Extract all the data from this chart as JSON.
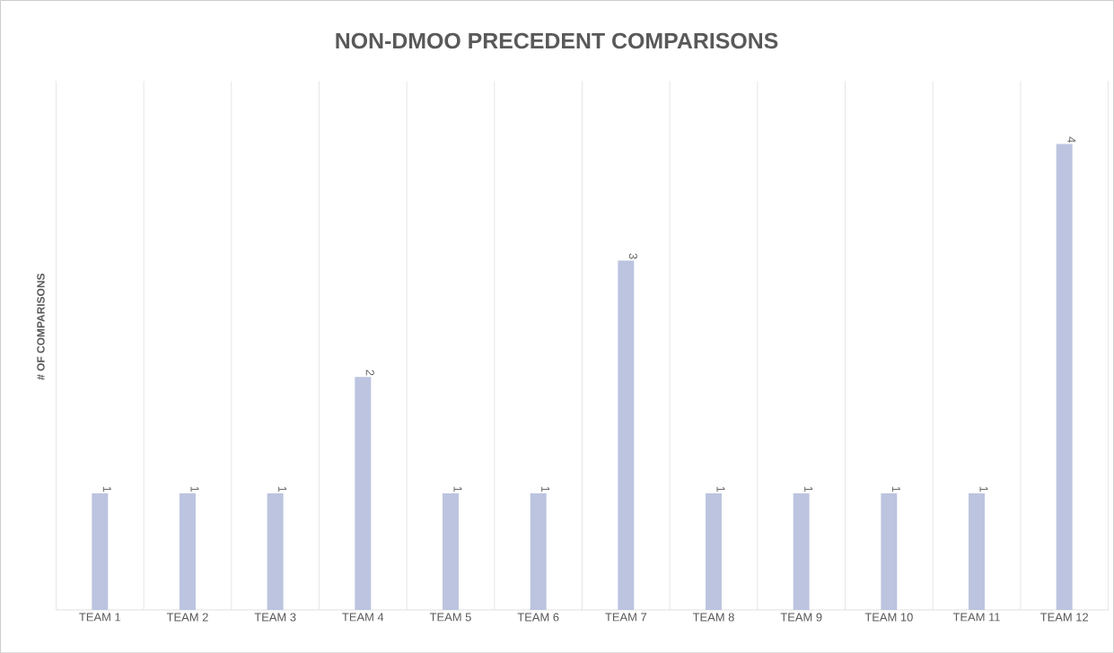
{
  "chart_data": {
    "type": "bar",
    "title": "NON-DMOO PRECEDENT COMPARISONS",
    "ylabel": "# OF COMPARISONS",
    "categories": [
      "TEAM 1",
      "TEAM 2",
      "TEAM 3",
      "TEAM 4",
      "TEAM 5",
      "TEAM 6",
      "TEAM 7",
      "TEAM 8",
      "TEAM 9",
      "TEAM 10",
      "TEAM 11",
      "TEAM 12"
    ],
    "values": [
      1,
      1,
      1,
      2,
      1,
      1,
      3,
      1,
      1,
      1,
      1,
      4
    ],
    "color": "#bcc4df",
    "data_labels": true,
    "grid": "x"
  }
}
